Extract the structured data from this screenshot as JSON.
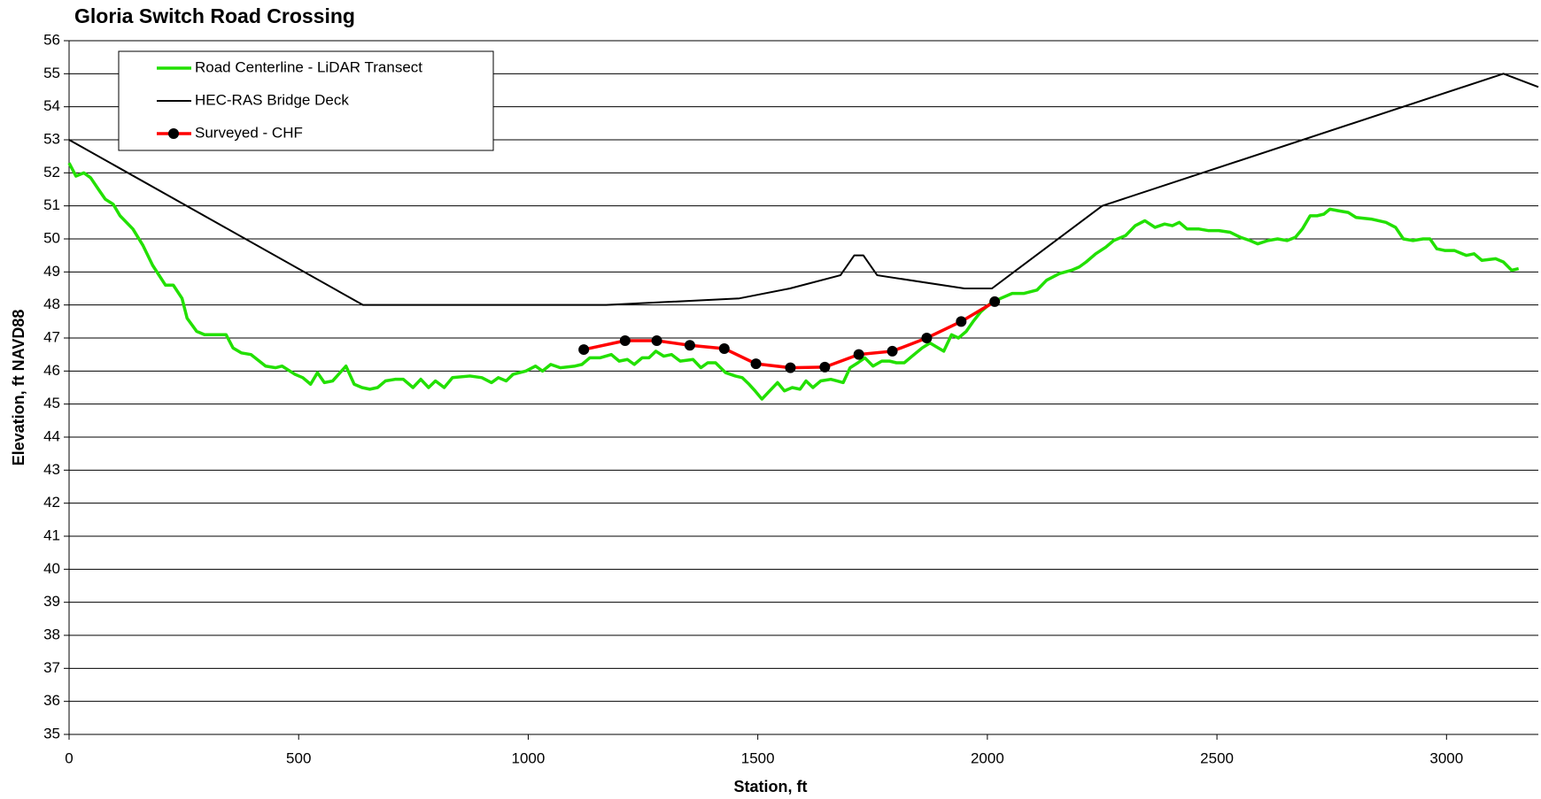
{
  "chart_data": {
    "type": "line",
    "title": "Gloria Switch Road Crossing",
    "xlabel": "Station, ft",
    "ylabel": "Elevation, ft NAVD88",
    "xlim": [
      0,
      3200
    ],
    "xticks": [
      0,
      500,
      1000,
      1500,
      2000,
      2500,
      3000
    ],
    "ylim": [
      35,
      56
    ],
    "yticks": [
      35,
      36,
      37,
      38,
      39,
      40,
      41,
      42,
      43,
      44,
      45,
      46,
      47,
      48,
      49,
      50,
      51,
      52,
      53,
      54,
      55,
      56
    ],
    "grid": true,
    "legend": "upper left",
    "series": [
      {
        "name": "Road Centerline - LiDAR Transect",
        "color": "#22e000",
        "markers": false,
        "x": [
          0,
          15,
          32,
          47,
          64,
          79,
          96,
          111,
          139,
          161,
          182,
          210,
          227,
          246,
          257,
          278,
          295,
          310,
          342,
          357,
          375,
          396,
          428,
          450,
          464,
          492,
          509,
          526,
          541,
          556,
          574,
          603,
          621,
          638,
          655,
          672,
          689,
          710,
          728,
          749,
          766,
          783,
          798,
          817,
          835,
          873,
          899,
          920,
          935,
          952,
          967,
          995,
          1016,
          1031,
          1049,
          1070,
          1102,
          1117,
          1134,
          1156,
          1181,
          1198,
          1216,
          1231,
          1248,
          1263,
          1278,
          1295,
          1312,
          1331,
          1359,
          1376,
          1391,
          1408,
          1430,
          1451,
          1466,
          1481,
          1494,
          1509,
          1526,
          1543,
          1558,
          1575,
          1592,
          1605,
          1620,
          1637,
          1659,
          1673,
          1686,
          1701,
          1718,
          1733,
          1751,
          1770,
          1787,
          1802,
          1819,
          1836,
          1858,
          1875,
          1887,
          1905,
          1922,
          1937,
          1954,
          1969,
          1986,
          2007,
          2029,
          2054,
          2080,
          2108,
          2129,
          2157,
          2183,
          2200,
          2215,
          2236,
          2258,
          2275,
          2301,
          2322,
          2343,
          2365,
          2386,
          2403,
          2418,
          2435,
          2461,
          2482,
          2504,
          2529,
          2551,
          2572,
          2589,
          2611,
          2632,
          2653,
          2671,
          2686,
          2703,
          2718,
          2733,
          2746,
          2765,
          2786,
          2803,
          2836,
          2868,
          2889,
          2906,
          2927,
          2949,
          2964,
          2979,
          2996,
          3017,
          3043,
          3060,
          3077,
          3107,
          3124,
          3142,
          3157
        ],
        "values": [
          52.3,
          51.9,
          52.0,
          51.85,
          51.5,
          51.2,
          51.05,
          50.7,
          50.3,
          49.8,
          49.2,
          48.6,
          48.6,
          48.2,
          47.6,
          47.2,
          47.1,
          47.1,
          47.1,
          46.7,
          46.55,
          46.5,
          46.15,
          46.1,
          46.15,
          45.9,
          45.8,
          45.6,
          45.95,
          45.65,
          45.7,
          46.15,
          45.6,
          45.5,
          45.45,
          45.5,
          45.7,
          45.75,
          45.75,
          45.5,
          45.75,
          45.5,
          45.7,
          45.5,
          45.8,
          45.85,
          45.8,
          45.65,
          45.8,
          45.7,
          45.9,
          46.0,
          46.15,
          46.0,
          46.2,
          46.1,
          46.15,
          46.2,
          46.4,
          46.4,
          46.5,
          46.3,
          46.35,
          46.2,
          46.4,
          46.4,
          46.6,
          46.45,
          46.5,
          46.3,
          46.35,
          46.1,
          46.25,
          46.25,
          45.95,
          45.85,
          45.8,
          45.6,
          45.4,
          45.15,
          45.4,
          45.65,
          45.4,
          45.5,
          45.45,
          45.7,
          45.5,
          45.7,
          45.75,
          45.7,
          45.65,
          46.1,
          46.25,
          46.4,
          46.15,
          46.3,
          46.3,
          46.25,
          46.25,
          46.45,
          46.7,
          46.85,
          46.75,
          46.6,
          47.1,
          47.0,
          47.2,
          47.5,
          47.8,
          48.05,
          48.2,
          48.35,
          48.35,
          48.45,
          48.75,
          48.95,
          49.05,
          49.15,
          49.3,
          49.55,
          49.75,
          49.95,
          50.1,
          50.4,
          50.55,
          50.35,
          50.45,
          50.4,
          50.5,
          50.3,
          50.3,
          50.25,
          50.25,
          50.2,
          50.05,
          49.95,
          49.85,
          49.95,
          50.0,
          49.95,
          50.05,
          50.3,
          50.7,
          50.7,
          50.75,
          50.9,
          50.85,
          50.8,
          50.65,
          50.6,
          50.5,
          50.35,
          50.0,
          49.95,
          50.0,
          50.0,
          49.7,
          49.65,
          49.65,
          49.5,
          49.55,
          49.35,
          49.4,
          49.3,
          49.05,
          49.1
        ]
      },
      {
        "name": "HEC-RAS Bridge Deck",
        "color": "#000000",
        "markers": false,
        "x": [
          0,
          640,
          1170,
          1460,
          1570,
          1680,
          1710,
          1730,
          1760,
          1950,
          2010,
          2250,
          3124,
          3200
        ],
        "values": [
          53,
          48,
          48,
          48.2,
          48.5,
          48.9,
          49.5,
          49.5,
          48.9,
          48.5,
          48.5,
          51,
          55,
          54.6
        ]
      },
      {
        "name": "Surveyed - CHF",
        "color": "#ff0000",
        "markers": true,
        "x": [
          1121,
          1211,
          1280,
          1352,
          1427,
          1496,
          1571,
          1646,
          1720,
          1793,
          1868,
          1943,
          2016
        ],
        "values": [
          46.65,
          46.92,
          46.92,
          46.78,
          46.68,
          46.22,
          46.1,
          46.12,
          46.5,
          46.6,
          47.0,
          47.5,
          48.1
        ]
      }
    ]
  }
}
